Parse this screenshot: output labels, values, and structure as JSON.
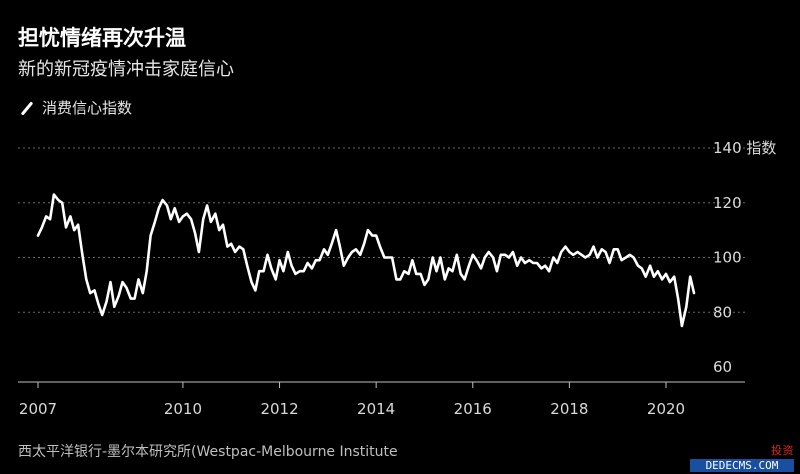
{
  "title": "担忧情绪再次升温",
  "subtitle": "新的新冠疫情冲击家庭信心",
  "legend_label": "消费信心指数",
  "source": "西太平洋银行-墨尔本研究所(Westpac-Melbourne Institute",
  "watermark": {
    "line1": "投资",
    "line2": "DEDECMS.COM"
  },
  "chart_data": {
    "type": "line",
    "title": "担忧情绪再次升温",
    "subtitle": "新的新冠疫情冲击家庭信心",
    "xlabel": "",
    "ylabel": "指数",
    "y_unit": "指数",
    "xlim": [
      2006.8,
      2020.9
    ],
    "ylim": [
      60,
      140
    ],
    "x_ticks": [
      2007,
      2010,
      2012,
      2014,
      2016,
      2018,
      2020
    ],
    "x_tick_labels": [
      "2007",
      "2010",
      "2012",
      "2014",
      "2016",
      "2018",
      "2020"
    ],
    "y_ticks": [
      60,
      80,
      100,
      120,
      140
    ],
    "y_tick_labels": [
      "60",
      "80",
      "100",
      "120",
      "140 指数"
    ],
    "grid": true,
    "legend_position": "top-left",
    "colors": {
      "line": "#ffffff",
      "background": "#000000",
      "grid": "#6a6a6a"
    },
    "series": [
      {
        "name": "消费信心指数",
        "x": [
          2007.0,
          2007.08,
          2007.17,
          2007.25,
          2007.33,
          2007.42,
          2007.5,
          2007.58,
          2007.67,
          2007.75,
          2007.83,
          2007.92,
          2008.0,
          2008.08,
          2008.17,
          2008.25,
          2008.33,
          2008.42,
          2008.5,
          2008.58,
          2008.67,
          2008.75,
          2008.83,
          2008.92,
          2009.0,
          2009.08,
          2009.17,
          2009.25,
          2009.33,
          2009.42,
          2009.5,
          2009.58,
          2009.67,
          2009.75,
          2009.83,
          2009.92,
          2010.0,
          2010.08,
          2010.17,
          2010.25,
          2010.33,
          2010.42,
          2010.5,
          2010.58,
          2010.67,
          2010.75,
          2010.83,
          2010.92,
          2011.0,
          2011.08,
          2011.17,
          2011.25,
          2011.33,
          2011.42,
          2011.5,
          2011.58,
          2011.67,
          2011.75,
          2011.83,
          2011.92,
          2012.0,
          2012.08,
          2012.17,
          2012.25,
          2012.33,
          2012.42,
          2012.5,
          2012.58,
          2012.67,
          2012.75,
          2012.83,
          2012.92,
          2013.0,
          2013.08,
          2013.17,
          2013.25,
          2013.33,
          2013.42,
          2013.5,
          2013.58,
          2013.67,
          2013.75,
          2013.83,
          2013.92,
          2014.0,
          2014.08,
          2014.17,
          2014.25,
          2014.33,
          2014.42,
          2014.5,
          2014.58,
          2014.67,
          2014.75,
          2014.83,
          2014.92,
          2015.0,
          2015.08,
          2015.17,
          2015.25,
          2015.33,
          2015.42,
          2015.5,
          2015.58,
          2015.67,
          2015.75,
          2015.83,
          2015.92,
          2016.0,
          2016.08,
          2016.17,
          2016.25,
          2016.33,
          2016.42,
          2016.5,
          2016.58,
          2016.67,
          2016.75,
          2016.83,
          2016.92,
          2017.0,
          2017.08,
          2017.17,
          2017.25,
          2017.33,
          2017.42,
          2017.5,
          2017.58,
          2017.67,
          2017.75,
          2017.83,
          2017.92,
          2018.0,
          2018.08,
          2018.17,
          2018.25,
          2018.33,
          2018.42,
          2018.5,
          2018.58,
          2018.67,
          2018.75,
          2018.83,
          2018.92,
          2019.0,
          2019.08,
          2019.17,
          2019.25,
          2019.33,
          2019.42,
          2019.5,
          2019.58,
          2019.67,
          2019.75,
          2019.83,
          2019.92,
          2020.0,
          2020.08,
          2020.17,
          2020.25,
          2020.33,
          2020.42,
          2020.5,
          2020.58
        ],
        "values": [
          108,
          111,
          115,
          114,
          123,
          121,
          120,
          111,
          115,
          110,
          112,
          101,
          92,
          87,
          88,
          83,
          79,
          84,
          91,
          82,
          86,
          91,
          89,
          85,
          85,
          92,
          87,
          95,
          108,
          113,
          118,
          121,
          119,
          114,
          118,
          113,
          115,
          116,
          114,
          109,
          102,
          114,
          119,
          113,
          116,
          110,
          112,
          104,
          105,
          102,
          104,
          103,
          97,
          91,
          88,
          95,
          95,
          101,
          96,
          92,
          99,
          95,
          102,
          97,
          94,
          95,
          95,
          98,
          96,
          99,
          99,
          103,
          101,
          105,
          110,
          104,
          97,
          100,
          102,
          103,
          101,
          105,
          110,
          108,
          108,
          104,
          100,
          100,
          100,
          92,
          92,
          95,
          94,
          99,
          94,
          94,
          90,
          92,
          100,
          95,
          100,
          92,
          96,
          95,
          101,
          94,
          92,
          97,
          101,
          99,
          96,
          100,
          102,
          100,
          95,
          101,
          101,
          100,
          102,
          97,
          100,
          98,
          99,
          98,
          98,
          96,
          97,
          95,
          100,
          98,
          102,
          104,
          102,
          101,
          102,
          101,
          100,
          101,
          104,
          100,
          103,
          102,
          98,
          103,
          103,
          99,
          100,
          101,
          100,
          97,
          96,
          93,
          97,
          93,
          95,
          92,
          94,
          91,
          93,
          85,
          75,
          82,
          93,
          87
        ]
      }
    ]
  }
}
